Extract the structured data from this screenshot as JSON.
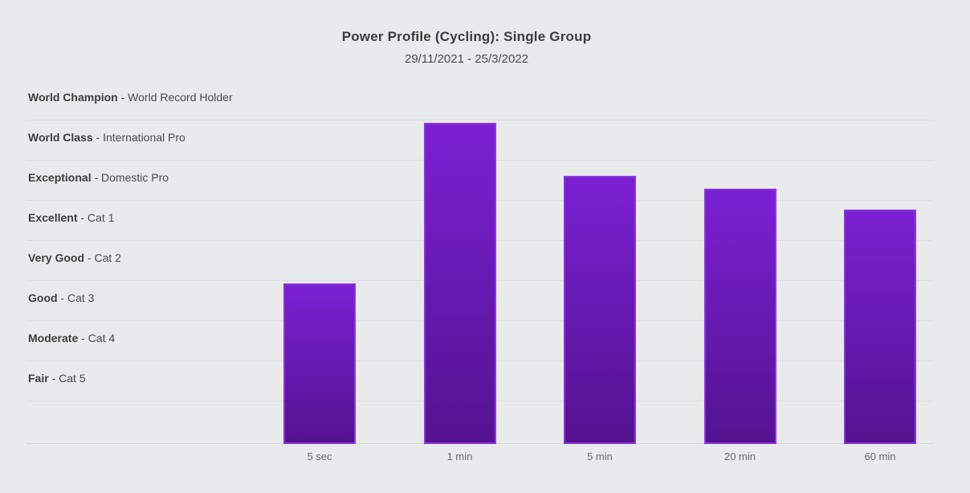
{
  "chart_data": {
    "type": "bar",
    "title": "Power Profile (Cycling): Single Group",
    "subtitle": "29/11/2021 - 25/3/2022",
    "categories": [
      "5 sec",
      "1 min",
      "5 min",
      "20 min",
      "60 min"
    ],
    "values": [
      4.0,
      8.0,
      6.68,
      6.36,
      5.84
    ],
    "value_unit": "ability bands above baseline (1 band = one category row)",
    "ylim": [
      0,
      9.06
    ],
    "grid": true,
    "legend": "none",
    "separator": " - ",
    "bands_top_to_bottom": [
      {
        "label": "World Champion",
        "description": "World Record Holder"
      },
      {
        "label": "World Class",
        "description": "International Pro"
      },
      {
        "label": "Exceptional",
        "description": "Domestic Pro"
      },
      {
        "label": "Excellent",
        "description": "Cat 1"
      },
      {
        "label": "Very Good",
        "description": "Cat 2"
      },
      {
        "label": "Good",
        "description": "Cat 3"
      },
      {
        "label": "Moderate",
        "description": "Cat 4"
      },
      {
        "label": "Fair",
        "description": "Cat 5"
      }
    ],
    "colors": {
      "background": "#e9eaec",
      "bar_gradient_top": "#7b20d4",
      "bar_gradient_bottom": "#541390",
      "bar_edge": "#8d33e3",
      "gridline": "#dcdde0",
      "axis_line": "#d2d4d7",
      "title_text": "#3b3b3b",
      "subtitle_text": "#4a4a4a",
      "band_label_text": "#3d3d3d",
      "band_desc_text": "#4a4a4a",
      "tick_text": "#6b6b6b"
    }
  }
}
